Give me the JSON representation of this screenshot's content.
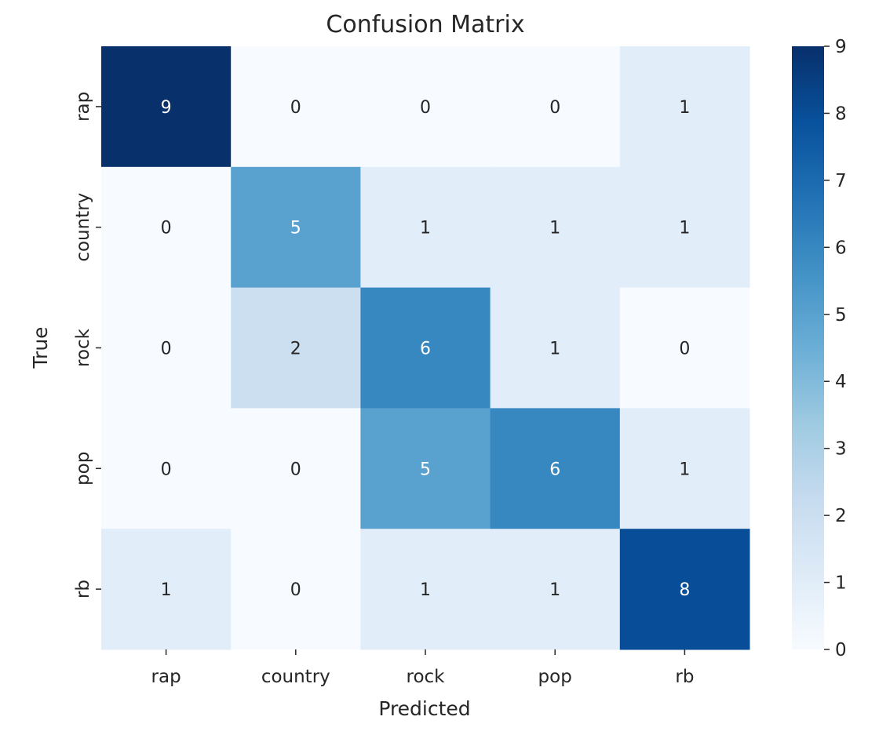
{
  "chart_data": {
    "type": "heatmap",
    "title": "Confusion Matrix",
    "xlabel": "Predicted",
    "ylabel": "True",
    "x_categories": [
      "rap",
      "country",
      "rock",
      "pop",
      "rb"
    ],
    "y_categories": [
      "rap",
      "country",
      "rock",
      "pop",
      "rb"
    ],
    "values": [
      [
        9,
        0,
        0,
        0,
        1
      ],
      [
        0,
        5,
        1,
        1,
        1
      ],
      [
        0,
        2,
        6,
        1,
        0
      ],
      [
        0,
        0,
        5,
        6,
        1
      ],
      [
        1,
        0,
        1,
        1,
        8
      ]
    ],
    "colormap": "Blues",
    "vmin": 0,
    "vmax": 9,
    "colorbar_ticks": [
      "0",
      "1",
      "2",
      "3",
      "4",
      "5",
      "6",
      "7",
      "8",
      "9"
    ],
    "annotations": true,
    "colors": {
      "low": "#f7fbff",
      "high": "#08306b",
      "annotation_light": "#ffffff",
      "annotation_dark": "#262626"
    }
  }
}
